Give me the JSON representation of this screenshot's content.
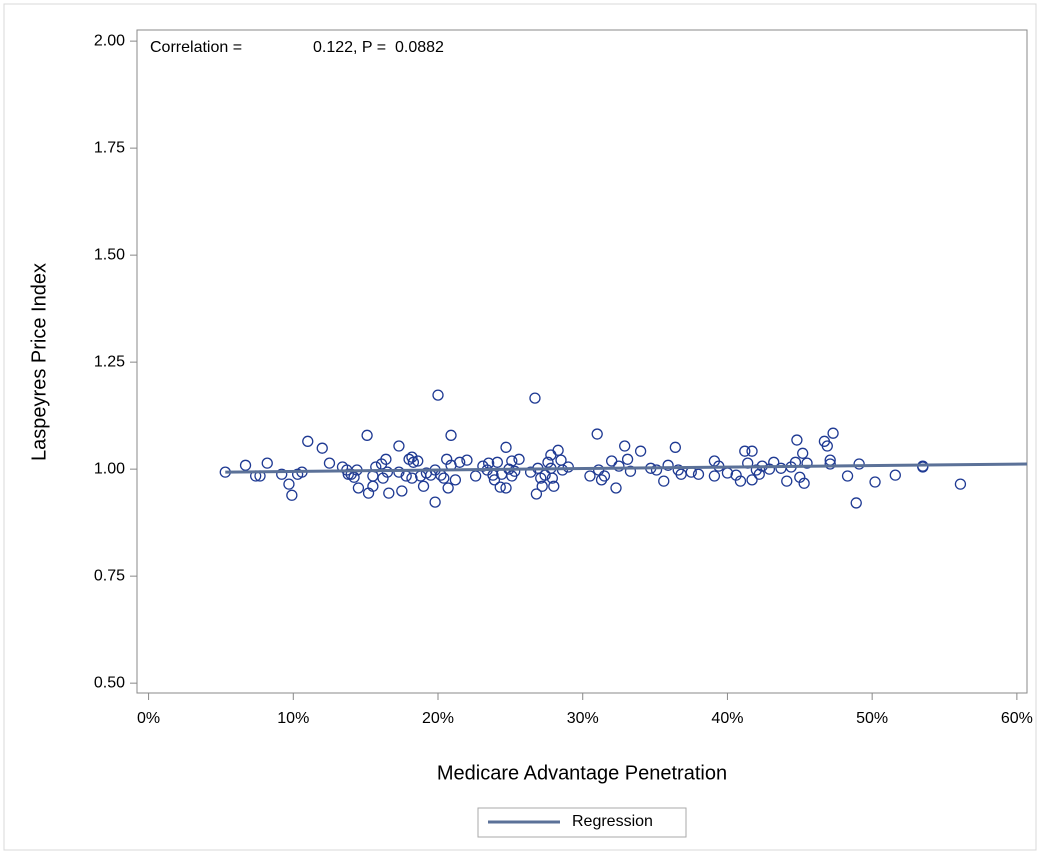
{
  "chart_data": {
    "type": "scatter",
    "annotation": [
      "Correlation =",
      "0.122, P =  0.0882"
    ],
    "x_label": "Medicare Advantage Penetration",
    "y_label": "Laspeyres Price Index",
    "xlim": [
      -0.8,
      60.7
    ],
    "ylim": [
      0.477,
      2.026
    ],
    "xticks": [
      {
        "value": 0,
        "label": "0%"
      },
      {
        "value": 10,
        "label": "10%"
      },
      {
        "value": 20,
        "label": "20%"
      },
      {
        "value": 30,
        "label": "30%"
      },
      {
        "value": 40,
        "label": "40%"
      },
      {
        "value": 50,
        "label": "50%"
      },
      {
        "value": 60,
        "label": "60%"
      }
    ],
    "yticks": [
      {
        "value": 0.5,
        "label": "0.50"
      },
      {
        "value": 0.75,
        "label": "0.75"
      },
      {
        "value": 1,
        "label": "1.00"
      },
      {
        "value": 1.25,
        "label": "1.25"
      },
      {
        "value": 1.5,
        "label": "1.50"
      },
      {
        "value": 1.75,
        "label": "1.75"
      },
      {
        "value": 2,
        "label": "2.00"
      }
    ],
    "points": {
      "color": "#1f3a93",
      "x": [
        5.3,
        6.7,
        7.4,
        7.7,
        8.2,
        9.2,
        9.7,
        9.9,
        10.3,
        10.6,
        11.0,
        12.0,
        12.5,
        13.4,
        13.7,
        13.8,
        14.0,
        14.2,
        14.4,
        14.5,
        15.1,
        15.2,
        15.5,
        15.5,
        15.7,
        16.1,
        16.4,
        16.2,
        16.6,
        16.5,
        17.3,
        17.3,
        17.5,
        17.8,
        18.0,
        18.2,
        18.3,
        18.6,
        18.2,
        18.8,
        19.0,
        19.2,
        19.5,
        19.8,
        19.8,
        20.0,
        20.2,
        20.4,
        20.6,
        20.7,
        20.9,
        20.9,
        21.2,
        21.5,
        22.0,
        22.6,
        23.1,
        23.4,
        23.5,
        23.8,
        23.9,
        24.1,
        24.3,
        24.4,
        24.7,
        24.7,
        24.9,
        25.1,
        25.1,
        25.3,
        25.6,
        26.4,
        26.7,
        26.8,
        26.9,
        27.1,
        27.2,
        27.4,
        27.6,
        27.8,
        27.8,
        27.9,
        28.0,
        28.3,
        28.5,
        28.6,
        29.0,
        30.5,
        31.0,
        31.1,
        31.3,
        31.5,
        32.0,
        32.3,
        32.5,
        32.9,
        33.1,
        33.3,
        34.0,
        34.7,
        35.1,
        35.6,
        35.9,
        36.4,
        36.6,
        36.8,
        37.5,
        38.0,
        39.1,
        39.1,
        39.4,
        40.0,
        40.6,
        40.9,
        41.2,
        41.4,
        41.7,
        41.7,
        42.0,
        42.2,
        42.4,
        42.9,
        43.2,
        43.7,
        44.1,
        44.4,
        44.7,
        44.8,
        45.0,
        45.2,
        45.3,
        45.5,
        46.7,
        46.9,
        47.1,
        47.1,
        47.3,
        48.3,
        48.9,
        49.1,
        50.2,
        51.6,
        53.5,
        53.5,
        56.1
      ],
      "values": [
        0.993,
        1.009,
        0.984,
        0.984,
        1.014,
        0.988,
        0.965,
        0.939,
        0.988,
        0.993,
        1.065,
        1.049,
        1.014,
        1.005,
        0.998,
        0.988,
        0.988,
        0.981,
        0.998,
        0.956,
        1.079,
        0.944,
        0.984,
        0.96,
        1.005,
        1.012,
        1.023,
        0.979,
        0.944,
        0.993,
        1.054,
        0.993,
        0.949,
        0.984,
        1.023,
        1.028,
        1.016,
        1.019,
        0.979,
        0.984,
        0.96,
        0.991,
        0.986,
        0.998,
        0.923,
        1.173,
        0.986,
        0.979,
        1.023,
        0.956,
        1.079,
        1.009,
        0.975,
        1.016,
        1.021,
        0.984,
        1.007,
        0.998,
        1.014,
        0.986,
        0.975,
        1.016,
        0.958,
        0.988,
        1.051,
        0.956,
        1.0,
        1.019,
        0.984,
        0.995,
        1.023,
        0.993,
        1.166,
        0.942,
        1.002,
        0.979,
        0.96,
        0.986,
        1.016,
        1.033,
        1.002,
        0.979,
        0.96,
        1.044,
        1.021,
        0.998,
        1.005,
        0.984,
        1.082,
        0.998,
        0.975,
        0.984,
        1.019,
        0.956,
        1.007,
        1.054,
        1.023,
        0.995,
        1.042,
        1.002,
        0.998,
        0.972,
        1.009,
        1.051,
        0.998,
        0.988,
        0.993,
        0.988,
        1.019,
        0.984,
        1.007,
        0.991,
        0.986,
        0.972,
        1.042,
        1.014,
        1.042,
        0.975,
        0.998,
        0.988,
        1.007,
        1.0,
        1.016,
        1.002,
        0.972,
        1.005,
        1.016,
        1.068,
        0.981,
        1.037,
        0.967,
        1.014,
        1.065,
        1.054,
        1.021,
        1.012,
        1.084,
        0.984,
        0.921,
        1.012,
        0.97,
        0.986,
        1.007,
        1.005,
        0.965
      ]
    },
    "series": [
      {
        "name": "Regression",
        "color": "#5b7198",
        "x": [
          5.3,
          60.7
        ],
        "values": [
          0.993,
          1.012
        ]
      }
    ]
  }
}
